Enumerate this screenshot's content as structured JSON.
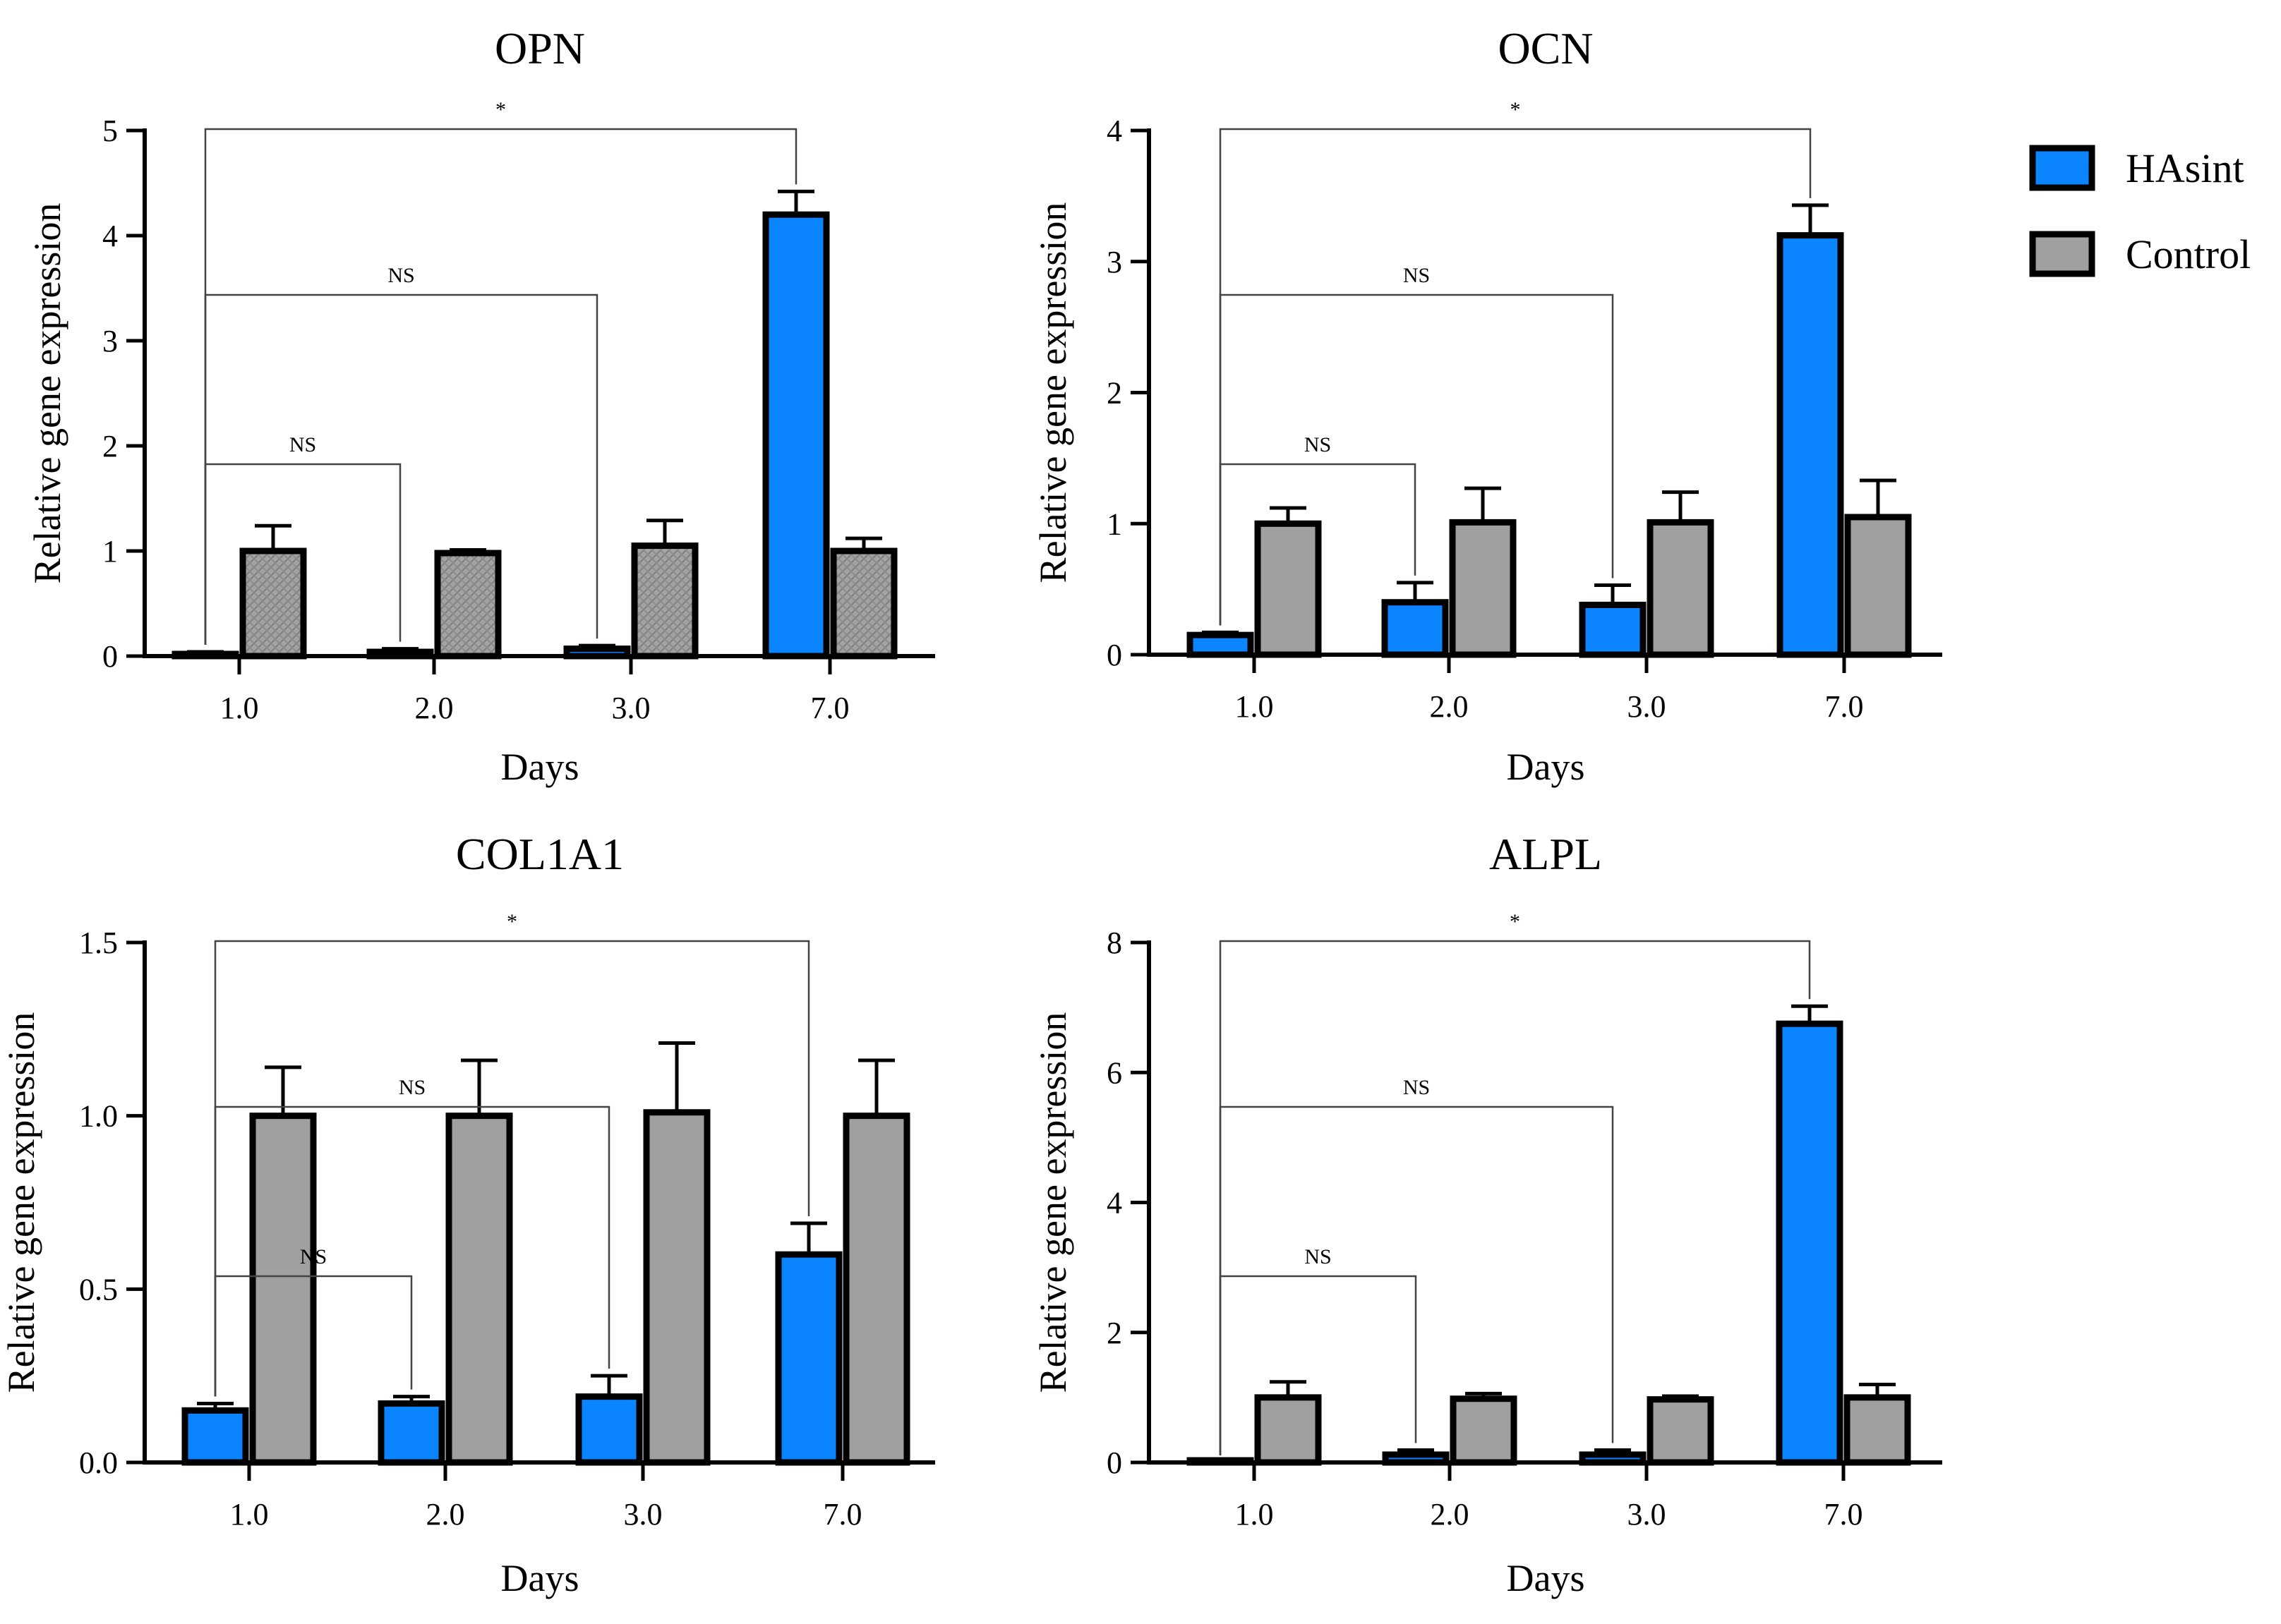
{
  "legend": {
    "series": [
      {
        "name": "HAsint",
        "color": "#0a84ff"
      },
      {
        "name": "Control",
        "color": "#a0a0a0"
      }
    ]
  },
  "chart_data": [
    {
      "type": "bar",
      "title": "OPN",
      "xlabel": "Days",
      "ylabel": "Relative gene expression",
      "categories": [
        "1.0",
        "2.0",
        "3.0",
        "7.0"
      ],
      "ylim": [
        0,
        5
      ],
      "yticks": [
        "0",
        "1",
        "2",
        "3",
        "4",
        "5"
      ],
      "hatched_control": true,
      "series": [
        {
          "name": "HAsint",
          "values": [
            0.02,
            0.04,
            0.07,
            4.2
          ],
          "errors": [
            0.02,
            0.03,
            0.03,
            0.22
          ]
        },
        {
          "name": "Control",
          "values": [
            1.0,
            0.98,
            1.05,
            1.0
          ],
          "errors": [
            0.24,
            0.03,
            0.24,
            0.12
          ]
        }
      ],
      "annotations": [
        {
          "label": "*",
          "from": 0,
          "to": 3
        },
        {
          "label": "NS",
          "from": 0,
          "to": 2
        },
        {
          "label": "NS",
          "from": 0,
          "to": 1
        }
      ]
    },
    {
      "type": "bar",
      "title": "OCN",
      "xlabel": "Days",
      "ylabel": "Relative gene expression",
      "categories": [
        "1.0",
        "2.0",
        "3.0",
        "7.0"
      ],
      "ylim": [
        0,
        4
      ],
      "yticks": [
        "0",
        "1",
        "2",
        "3",
        "4"
      ],
      "hatched_control": false,
      "series": [
        {
          "name": "HAsint",
          "values": [
            0.15,
            0.4,
            0.38,
            3.2
          ],
          "errors": [
            0.02,
            0.15,
            0.15,
            0.23
          ]
        },
        {
          "name": "Control",
          "values": [
            1.0,
            1.01,
            1.01,
            1.05
          ],
          "errors": [
            0.12,
            0.26,
            0.23,
            0.28
          ]
        }
      ],
      "annotations": [
        {
          "label": "*",
          "from": 0,
          "to": 3
        },
        {
          "label": "NS",
          "from": 0,
          "to": 2
        },
        {
          "label": "NS",
          "from": 0,
          "to": 1
        }
      ]
    },
    {
      "type": "bar",
      "title": "COL1A1",
      "xlabel": "Days",
      "ylabel": "Relative gene expression",
      "categories": [
        "1.0",
        "2.0",
        "3.0",
        "7.0"
      ],
      "ylim": [
        0,
        1.5
      ],
      "yticks": [
        "0.0",
        "0.5",
        "1.0",
        "1.5"
      ],
      "hatched_control": false,
      "series": [
        {
          "name": "HAsint",
          "values": [
            0.15,
            0.17,
            0.19,
            0.6
          ],
          "errors": [
            0.02,
            0.02,
            0.06,
            0.09
          ]
        },
        {
          "name": "Control",
          "values": [
            1.0,
            1.0,
            1.01,
            1.0
          ],
          "errors": [
            0.14,
            0.16,
            0.2,
            0.16
          ]
        }
      ],
      "annotations": [
        {
          "label": "*",
          "from": 0,
          "to": 3
        },
        {
          "label": "NS",
          "from": 0,
          "to": 2
        },
        {
          "label": "NS",
          "from": 0,
          "to": 1
        }
      ]
    },
    {
      "type": "bar",
      "title": "ALPL",
      "xlabel": "Days",
      "ylabel": "Relative gene expression",
      "categories": [
        "1.0",
        "2.0",
        "3.0",
        "7.0"
      ],
      "ylim": [
        0,
        8
      ],
      "yticks": [
        "0",
        "2",
        "4",
        "6",
        "8"
      ],
      "hatched_control": false,
      "series": [
        {
          "name": "HAsint",
          "values": [
            0.0,
            0.12,
            0.12,
            6.75
          ],
          "errors": [
            0.0,
            0.07,
            0.07,
            0.27
          ]
        },
        {
          "name": "Control",
          "values": [
            1.0,
            0.98,
            0.97,
            1.0
          ],
          "errors": [
            0.24,
            0.08,
            0.05,
            0.2
          ]
        }
      ],
      "annotations": [
        {
          "label": "*",
          "from": 0,
          "to": 3
        },
        {
          "label": "NS",
          "from": 0,
          "to": 2
        },
        {
          "label": "NS",
          "from": 0,
          "to": 1
        }
      ]
    }
  ]
}
